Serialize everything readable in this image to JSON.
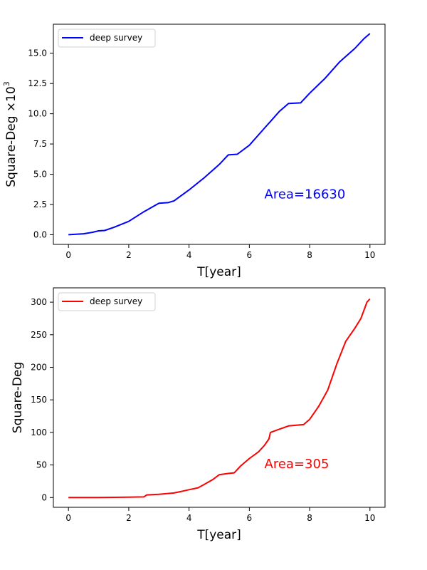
{
  "chart_data": [
    {
      "type": "line",
      "xlabel": "T[year]",
      "ylabel": "Square-Deg ×10",
      "ylabel_exponent": "3",
      "xlim": [
        -0.5,
        10.5
      ],
      "ylim": [
        -0.8,
        17.4
      ],
      "xticks": [
        0,
        2,
        4,
        6,
        8,
        10
      ],
      "xtick_labels": [
        "0",
        "2",
        "4",
        "6",
        "8",
        "10"
      ],
      "yticks": [
        0,
        2.5,
        5,
        7.5,
        10,
        12.5,
        15
      ],
      "ytick_labels": [
        "0.0",
        "2.5",
        "5.0",
        "7.5",
        "10.0",
        "12.5",
        "15.0"
      ],
      "legend": {
        "placement": "upper-left",
        "entries": [
          "deep survey"
        ]
      },
      "annotation": {
        "text": "Area=16630",
        "x": 6.5,
        "y": 3.0
      },
      "grid": false,
      "series": [
        {
          "name": "deep survey",
          "color": "#0000ff",
          "x": [
            0,
            0.5,
            0.8,
            1.0,
            1.2,
            1.5,
            2.0,
            2.5,
            3.0,
            3.3,
            3.5,
            4.0,
            4.5,
            5.0,
            5.3,
            5.6,
            6.0,
            6.5,
            7.0,
            7.3,
            7.7,
            8.0,
            8.5,
            9.0,
            9.5,
            9.8,
            10.0
          ],
          "y": [
            0,
            0.08,
            0.2,
            0.32,
            0.35,
            0.6,
            1.1,
            1.9,
            2.6,
            2.65,
            2.8,
            3.7,
            4.7,
            5.8,
            6.6,
            6.65,
            7.4,
            8.8,
            10.2,
            10.85,
            10.9,
            11.7,
            12.9,
            14.3,
            15.4,
            16.2,
            16.63
          ]
        }
      ]
    },
    {
      "type": "line",
      "xlabel": "T[year]",
      "ylabel": "Square-Deg",
      "xlim": [
        -0.5,
        10.5
      ],
      "ylim": [
        -15,
        322
      ],
      "xticks": [
        0,
        2,
        4,
        6,
        8,
        10
      ],
      "xtick_labels": [
        "0",
        "2",
        "4",
        "6",
        "8",
        "10"
      ],
      "yticks": [
        0,
        50,
        100,
        150,
        200,
        250,
        300
      ],
      "ytick_labels": [
        "0",
        "50",
        "100",
        "150",
        "200",
        "250",
        "300"
      ],
      "legend": {
        "placement": "upper-left",
        "entries": [
          "deep survey"
        ]
      },
      "annotation": {
        "text": "Area=305",
        "x": 6.5,
        "y": 45
      },
      "grid": false,
      "series": [
        {
          "name": "deep survey",
          "color": "#ff0000",
          "x": [
            0,
            1.0,
            2.0,
            2.5,
            2.6,
            3.0,
            3.5,
            3.8,
            4.0,
            4.3,
            4.5,
            4.8,
            5.0,
            5.3,
            5.5,
            5.7,
            6.0,
            6.3,
            6.5,
            6.65,
            6.7,
            7.0,
            7.3,
            7.8,
            8.0,
            8.3,
            8.6,
            8.9,
            9.2,
            9.5,
            9.7,
            9.9,
            10.0
          ],
          "y": [
            0,
            0,
            0.5,
            1,
            4,
            5,
            7,
            10,
            12,
            15,
            20,
            28,
            35,
            37,
            38,
            48,
            60,
            70,
            80,
            90,
            100,
            105,
            110,
            112,
            120,
            140,
            165,
            205,
            240,
            260,
            275,
            300,
            305
          ]
        }
      ]
    }
  ]
}
